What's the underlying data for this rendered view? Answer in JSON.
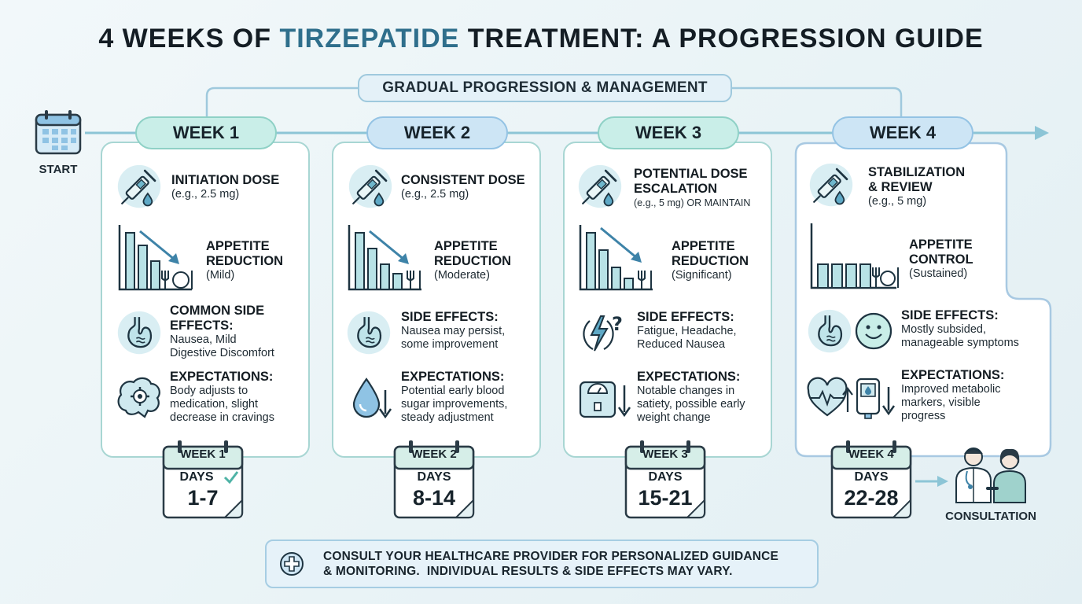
{
  "title": {
    "prefix": "4 WEEKS OF ",
    "highlight": "TIRZEPATIDE",
    "suffix": " TREATMENT: A PROGRESSION GUIDE"
  },
  "progression_label": "GRADUAL PROGRESSION & MANAGEMENT",
  "start_label": "START",
  "weeks": [
    {
      "badge": "WEEK 1",
      "dose": {
        "title": "INITIATION DOSE",
        "detail": "(e.g., 2.5 mg)"
      },
      "appetite": {
        "title1": "APPETITE",
        "title2": "REDUCTION",
        "detail": "(Mild)"
      },
      "side": {
        "title1": "COMMON SIDE",
        "title2": "EFFECTS:",
        "line1": "Nausea, Mild",
        "line2": "Digestive Discomfort"
      },
      "expect": {
        "title": "EXPECTATIONS:",
        "line1": "Body adjusts to",
        "line2": "medication, slight",
        "line3": "decrease in cravings"
      },
      "calendar": {
        "label": "WEEK 1",
        "days": "DAYS",
        "range": "1-7"
      }
    },
    {
      "badge": "WEEK 2",
      "dose": {
        "title": "CONSISTENT DOSE",
        "detail": "(e.g., 2.5 mg)"
      },
      "appetite": {
        "title1": "APPETITE",
        "title2": "REDUCTION",
        "detail": "(Moderate)"
      },
      "side": {
        "title": "SIDE EFFECTS:",
        "line1": "Nausea may persist,",
        "line2": "some improvement"
      },
      "expect": {
        "title": "EXPECTATIONS:",
        "line1": "Potential early blood",
        "line2": "sugar improvements,",
        "line3": "steady adjustment"
      },
      "calendar": {
        "label": "WEEK 2",
        "days": "DAYS",
        "range": "8-14"
      }
    },
    {
      "badge": "WEEK 3",
      "dose": {
        "title1": "POTENTIAL DOSE",
        "title2": "ESCALATION",
        "detail": "(e.g., 5 mg) OR MAINTAIN"
      },
      "appetite": {
        "title1": "APPETITE",
        "title2": "REDUCTION",
        "detail": "(Significant)"
      },
      "side": {
        "title": "SIDE EFFECTS:",
        "line1": "Fatigue, Headache,",
        "line2": "Reduced Nausea"
      },
      "expect": {
        "title": "EXPECTATIONS:",
        "line1": "Notable changes in",
        "line2": "satiety, possible early",
        "line3": "weight change"
      },
      "calendar": {
        "label": "WEEK 3",
        "days": "DAYS",
        "range": "15-21"
      }
    },
    {
      "badge": "WEEK 4",
      "dose": {
        "title1": "STABILIZATION",
        "title2": "& REVIEW",
        "detail": "(e.g., 5 mg)"
      },
      "appetite": {
        "title1": "APPETITE",
        "title2": "CONTROL",
        "detail": "(Sustained)"
      },
      "side": {
        "title": "SIDE EFFECTS:",
        "line1": "Mostly subsided,",
        "line2": "manageable symptoms"
      },
      "expect": {
        "title": "EXPECTATIONS:",
        "line1": "Improved metabolic",
        "line2": "markers, visible",
        "line3": "progress"
      },
      "calendar": {
        "label": "WEEK 4",
        "days": "DAYS",
        "range": "22-28"
      }
    }
  ],
  "consultation_label": "CONSULTATION",
  "disclaimer": {
    "line1": "CONSULT YOUR HEALTHCARE PROVIDER FOR PERSONALIZED GUIDANCE",
    "line2": "& MONITORING.  INDIVIDUAL RESULTS & SIDE EFFECTS MAY VARY."
  },
  "colors": {
    "accent": "#2f6f8c",
    "teal": "#8fd1c6",
    "blue": "#94c3e4",
    "line": "#8cc5d6"
  }
}
